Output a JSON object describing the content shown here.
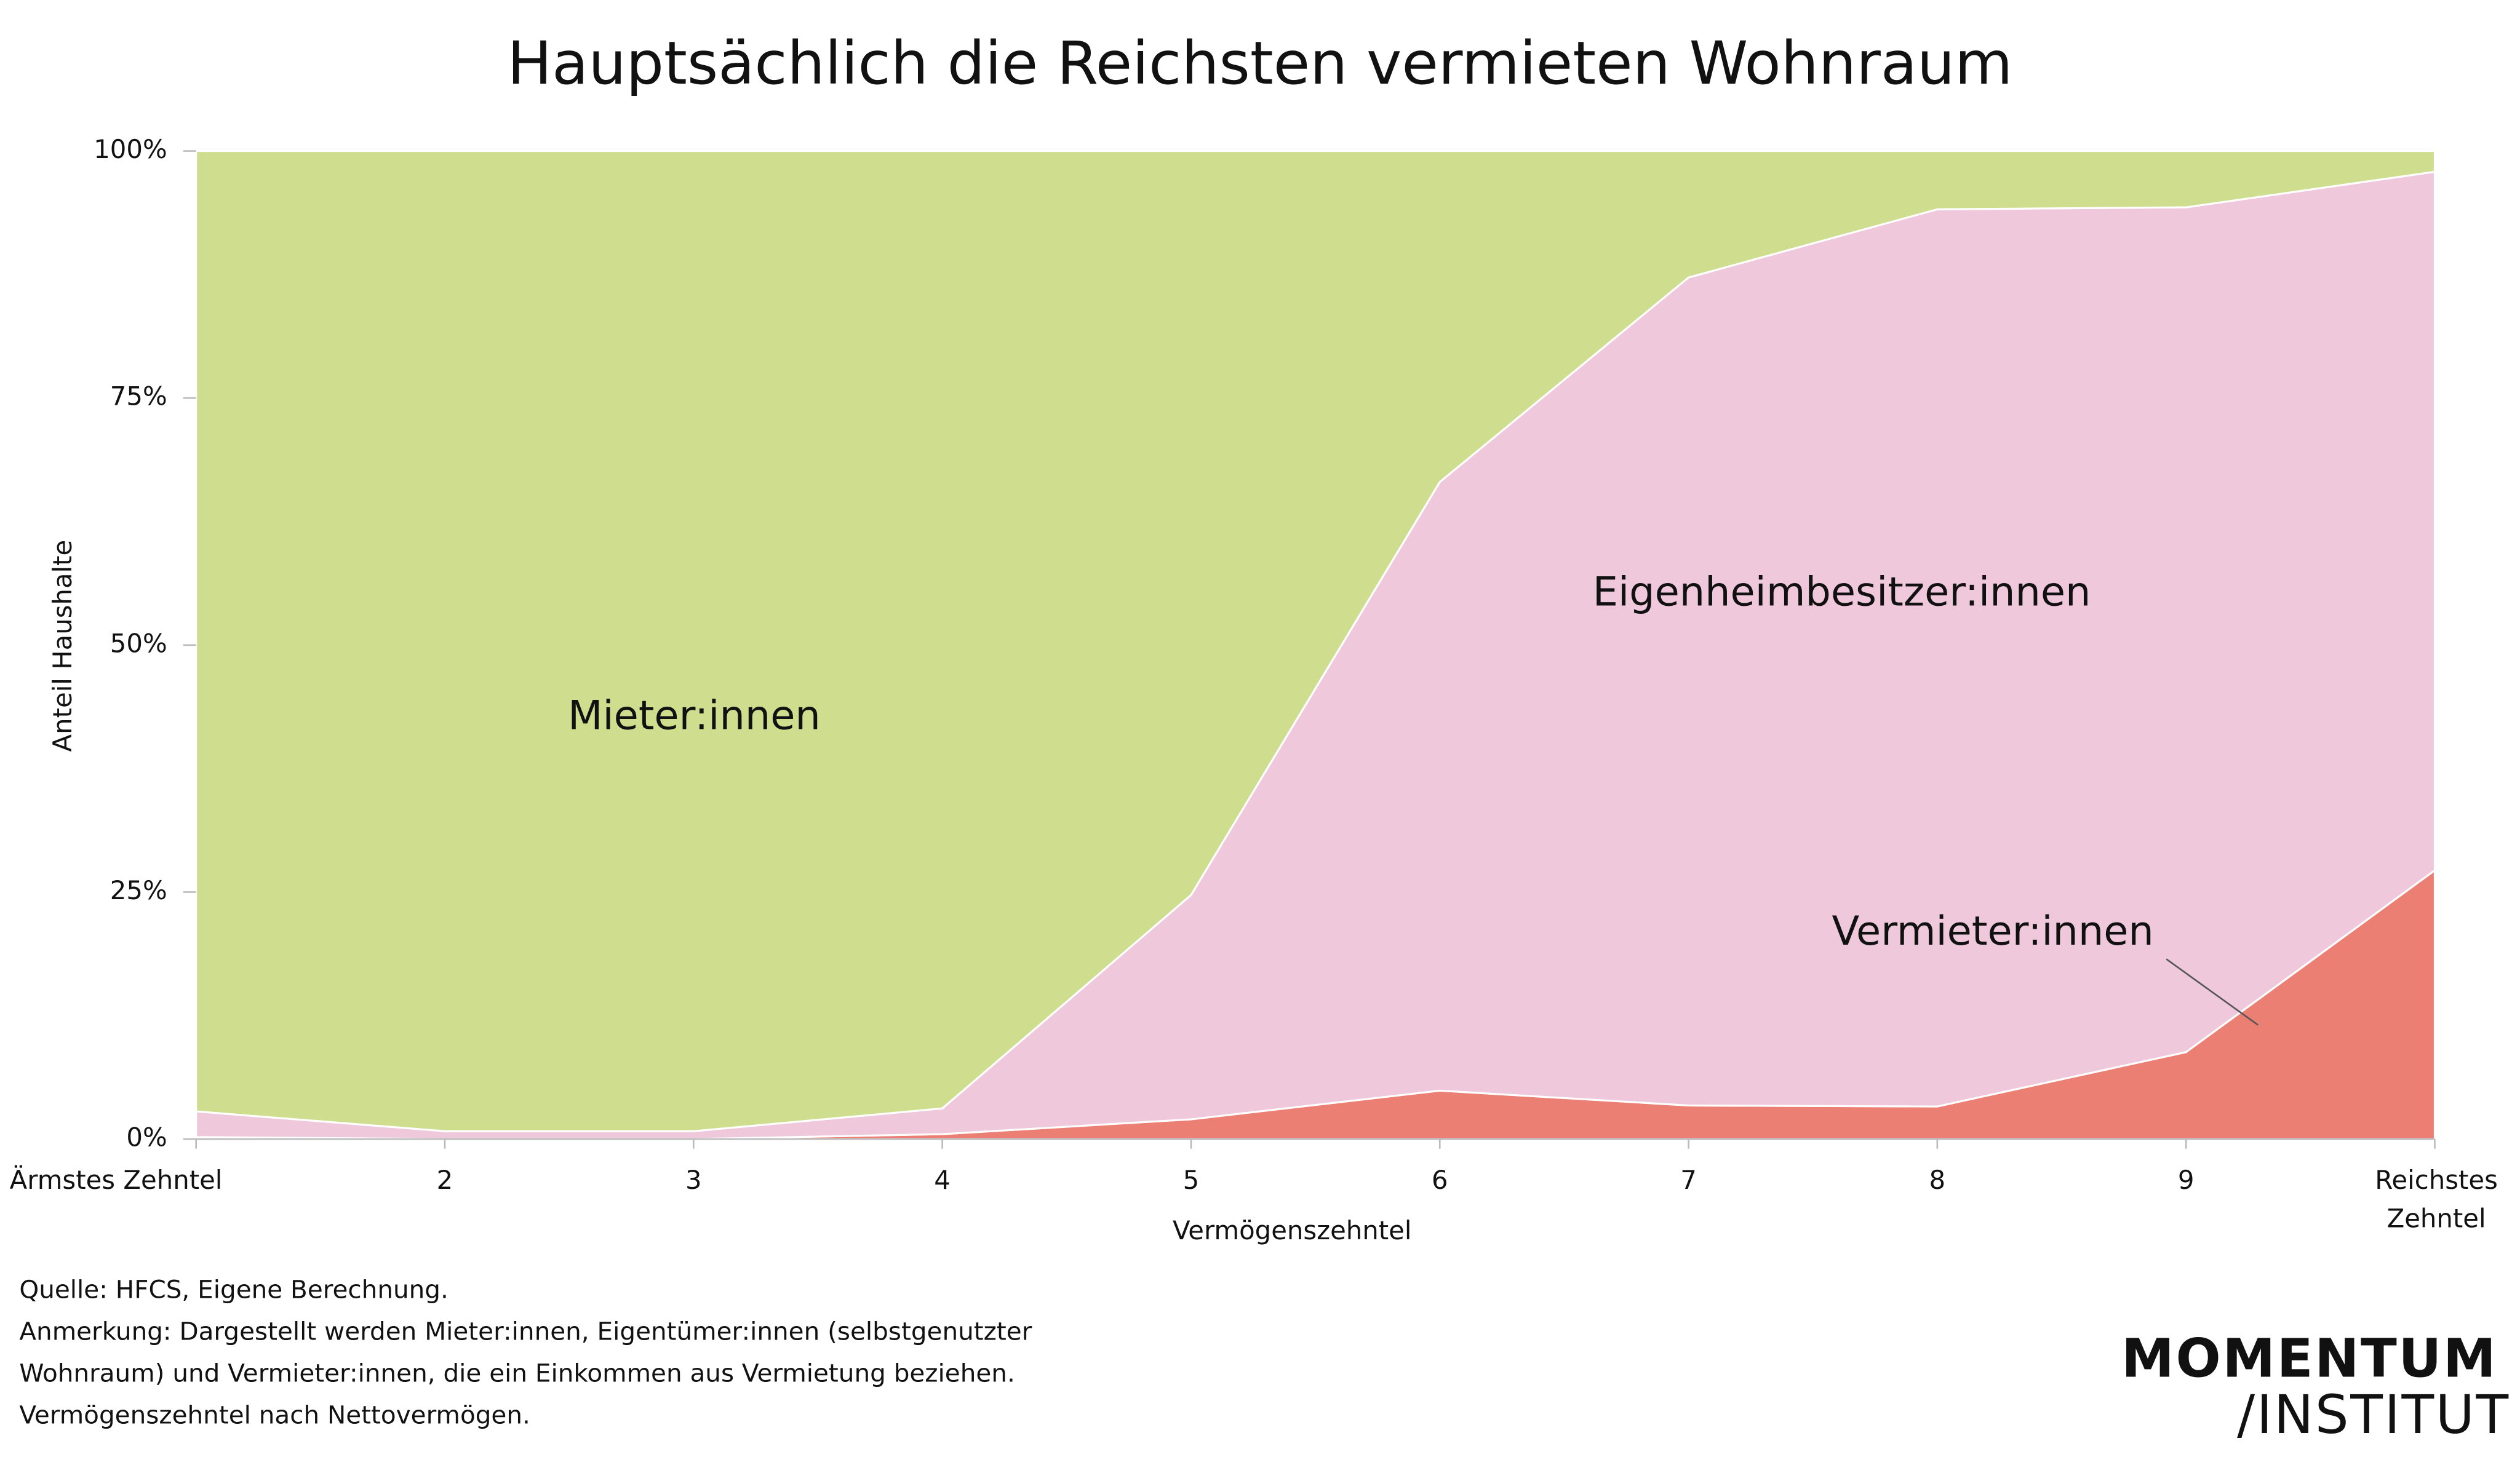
{
  "chart_data": {
    "type": "stacked_area",
    "title": "Hauptsächlich die Reichsten vermieten Wohnraum",
    "y_label": "Anteil Haushalte",
    "x_label": "Vermögenszehntel",
    "categories": [
      "Ärmstes Zehntel",
      "2",
      "3",
      "4",
      "5",
      "6",
      "7",
      "8",
      "9",
      "Reichstes Zehntel"
    ],
    "series": [
      {
        "name": "Vermieter:innen",
        "color": "#ec7f74",
        "values": [
          0.2,
          0,
          0,
          0.5,
          2,
          4.9,
          3.4,
          3.3,
          8.8,
          27.2
        ]
      },
      {
        "name": "Eigenheimbesitzer:innen",
        "color": "#f0c8dc",
        "values": [
          2.6,
          0.8,
          0.8,
          2.6,
          22.7,
          61.6,
          83.8,
          90.8,
          85.5,
          70.7
        ]
      },
      {
        "name": "Mieter:innen",
        "color": "#cfdd8f",
        "values": [
          97.2,
          99.2,
          99.2,
          96.9,
          75.3,
          33.5,
          12.8,
          5.9,
          5.7,
          2.1
        ]
      }
    ],
    "ylim": [
      0,
      100
    ],
    "yticks": [
      {
        "value": 0,
        "label": "0%"
      },
      {
        "value": 25,
        "label": "25%"
      },
      {
        "value": 50,
        "label": "50%"
      },
      {
        "value": 75,
        "label": "75%"
      },
      {
        "value": 100,
        "label": "100%"
      }
    ],
    "footnotes": [
      "Quelle: HFCS, Eigene Berechnung.",
      "Anmerkung: Dargestellt werden Mieter:innen, Eigentümer:innen (selbstgenutzter",
      "Wohnraum) und Vermieter:innen, die ein Einkommen aus Vermietung beziehen.",
      "Vermögenszehntel nach Nettovermögen."
    ],
    "logo": [
      "MOMENTUM",
      "/INSTITUT"
    ]
  }
}
